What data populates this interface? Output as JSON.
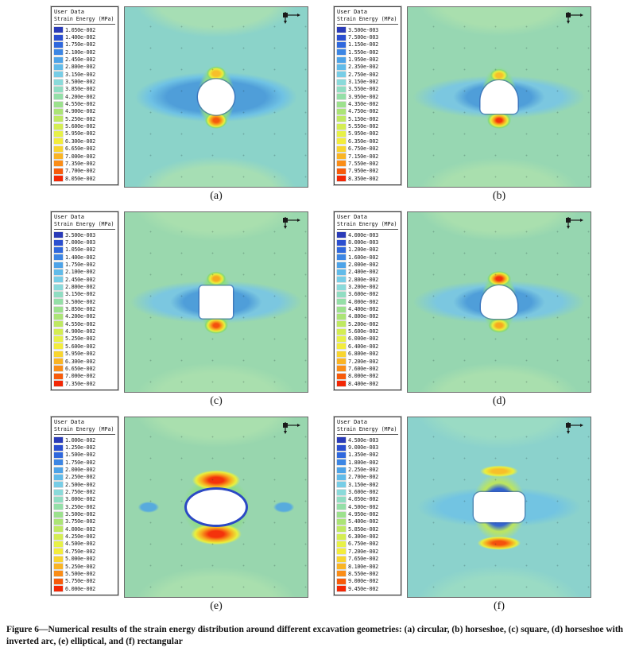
{
  "figure": {
    "caption": "Figure 6—Numerical results of the strain energy distribution around different excavation geometries: (a) circular, (b) horseshoe, (c) square, (d) horseshoe with inverted arc, (e) elliptical, and (f) rectangular"
  },
  "legend_colors": [
    "#2a3bb8",
    "#2b4fd0",
    "#2f68dd",
    "#3c86e4",
    "#4da3e8",
    "#61bbe9",
    "#77cde6",
    "#8adada",
    "#90ddc2",
    "#94dfa7",
    "#9ce18d",
    "#abe476",
    "#bfe962",
    "#d4ed52",
    "#e7f147",
    "#f3ec3c",
    "#f8d52f",
    "#fab424",
    "#fa8d18",
    "#f75b0b",
    "#f32705"
  ],
  "panels": [
    {
      "id": "a",
      "label": "(a)",
      "shape": "circle",
      "legend_title": "User Data",
      "legend_subtitle": "Strain Energy (MPa)",
      "values": [
        "1.050e-002",
        "1.400e-002",
        "1.750e-002",
        "2.100e-002",
        "2.450e-002",
        "2.800e-002",
        "3.150e-002",
        "3.500e-002",
        "3.850e-002",
        "4.200e-002",
        "4.550e-002",
        "4.900e-002",
        "5.250e-002",
        "5.600e-002",
        "5.950e-002",
        "6.300e-002",
        "6.650e-002",
        "7.000e-002",
        "7.350e-002",
        "7.700e-002",
        "8.050e-002"
      ]
    },
    {
      "id": "b",
      "label": "(b)",
      "shape": "horseshoe",
      "legend_title": "User Data",
      "legend_subtitle": "Strain Energy (MPa)",
      "values": [
        "3.500e-003",
        "7.500e-003",
        "1.150e-002",
        "1.550e-002",
        "1.950e-002",
        "2.350e-002",
        "2.750e-002",
        "3.150e-002",
        "3.550e-002",
        "3.950e-002",
        "4.350e-002",
        "4.750e-002",
        "5.150e-002",
        "5.550e-002",
        "5.950e-002",
        "6.350e-002",
        "6.750e-002",
        "7.150e-002",
        "7.550e-002",
        "7.950e-002",
        "8.350e-002"
      ]
    },
    {
      "id": "c",
      "label": "(c)",
      "shape": "square",
      "legend_title": "User Data",
      "legend_subtitle": "Strain Energy (MPa)",
      "values": [
        "3.500e-003",
        "7.000e-003",
        "1.050e-002",
        "1.400e-002",
        "1.750e-002",
        "2.100e-002",
        "2.450e-002",
        "2.800e-002",
        "3.150e-002",
        "3.500e-002",
        "3.850e-002",
        "4.200e-002",
        "4.550e-002",
        "4.900e-002",
        "5.250e-002",
        "5.600e-002",
        "5.950e-002",
        "6.300e-002",
        "6.650e-002",
        "7.000e-002",
        "7.350e-002"
      ]
    },
    {
      "id": "d",
      "label": "(d)",
      "shape": "horseshoe-inverted",
      "legend_title": "User Data",
      "legend_subtitle": "Strain Energy (MPa)",
      "values": [
        "4.000e-003",
        "8.000e-003",
        "1.200e-002",
        "1.600e-002",
        "2.000e-002",
        "2.400e-002",
        "2.800e-002",
        "3.200e-002",
        "3.600e-002",
        "4.000e-002",
        "4.400e-002",
        "4.800e-002",
        "5.200e-002",
        "5.600e-002",
        "6.000e-002",
        "6.400e-002",
        "6.800e-002",
        "7.200e-002",
        "7.600e-002",
        "8.000e-002",
        "8.400e-002"
      ]
    },
    {
      "id": "e",
      "label": "(e)",
      "shape": "ellipse",
      "legend_title": "User Data",
      "legend_subtitle": "Strain Energy (MPa)",
      "values": [
        "1.000e-002",
        "1.250e-002",
        "1.500e-002",
        "1.750e-002",
        "2.000e-002",
        "2.250e-002",
        "2.500e-002",
        "2.750e-002",
        "3.000e-002",
        "3.250e-002",
        "3.500e-002",
        "3.750e-002",
        "4.000e-002",
        "4.250e-002",
        "4.500e-002",
        "4.750e-002",
        "5.000e-002",
        "5.250e-002",
        "5.500e-002",
        "5.750e-002",
        "6.000e-002"
      ]
    },
    {
      "id": "f",
      "label": "(f)",
      "shape": "rectangle",
      "legend_title": "User Data",
      "legend_subtitle": "Strain Energy (MPa)",
      "values": [
        "4.500e-003",
        "9.000e-003",
        "1.350e-002",
        "1.800e-002",
        "2.250e-002",
        "2.700e-002",
        "3.150e-002",
        "3.600e-002",
        "4.050e-002",
        "4.500e-002",
        "4.950e-002",
        "5.400e-002",
        "5.850e-002",
        "6.300e-002",
        "6.750e-002",
        "7.200e-002",
        "7.650e-002",
        "8.100e-002",
        "8.550e-002",
        "9.000e-002",
        "9.450e-002"
      ]
    }
  ]
}
